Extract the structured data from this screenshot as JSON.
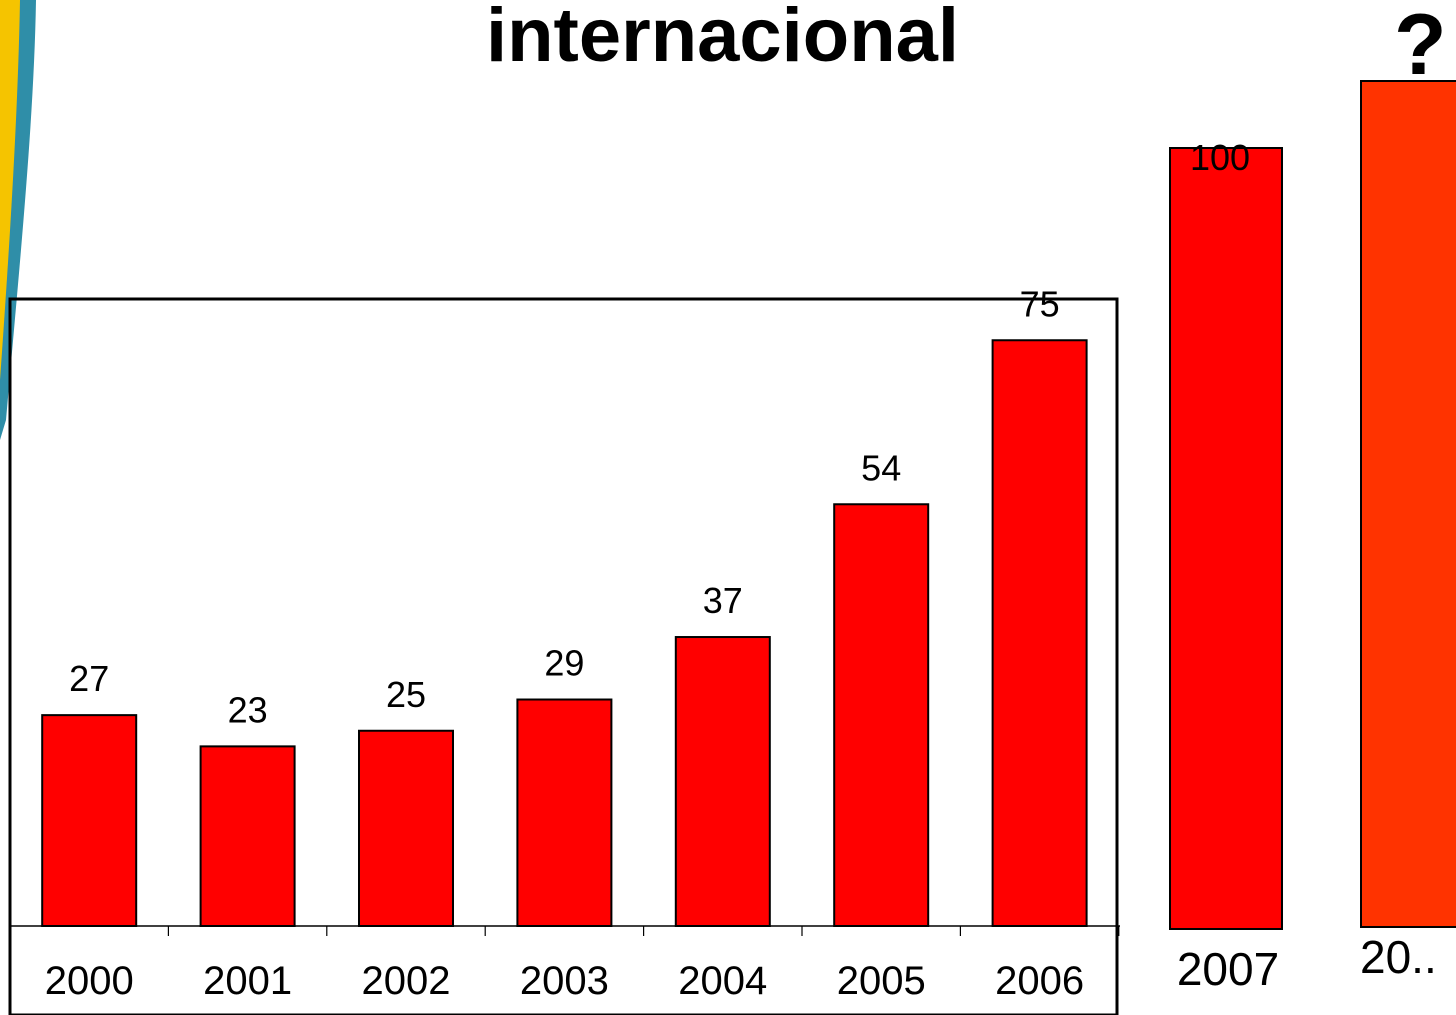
{
  "slide": {
    "title": "internacional",
    "question_mark": "?"
  },
  "colors": {
    "bar": "#ff0000",
    "projection_bar": "#ff3300",
    "deco_yellow": "#f5c400",
    "deco_teal": "#2f8ea8"
  },
  "chart_data": [
    {
      "type": "bar",
      "title": "",
      "xlabel": "",
      "ylabel": "",
      "categories": [
        "2000",
        "2001",
        "2002",
        "2003",
        "2004",
        "2005",
        "2006"
      ],
      "values": [
        27,
        23,
        25,
        29,
        37,
        54,
        75
      ],
      "data_labels": [
        "27",
        "23",
        "25",
        "29",
        "37",
        "54",
        "75"
      ],
      "ylim": [
        0,
        80
      ],
      "grid": false,
      "legend": "none"
    },
    {
      "type": "bar",
      "title": "",
      "categories": [
        "2007",
        "20.."
      ],
      "values": [
        100,
        null
      ],
      "data_labels": [
        "100",
        ""
      ],
      "grid": false,
      "legend": "none"
    }
  ]
}
